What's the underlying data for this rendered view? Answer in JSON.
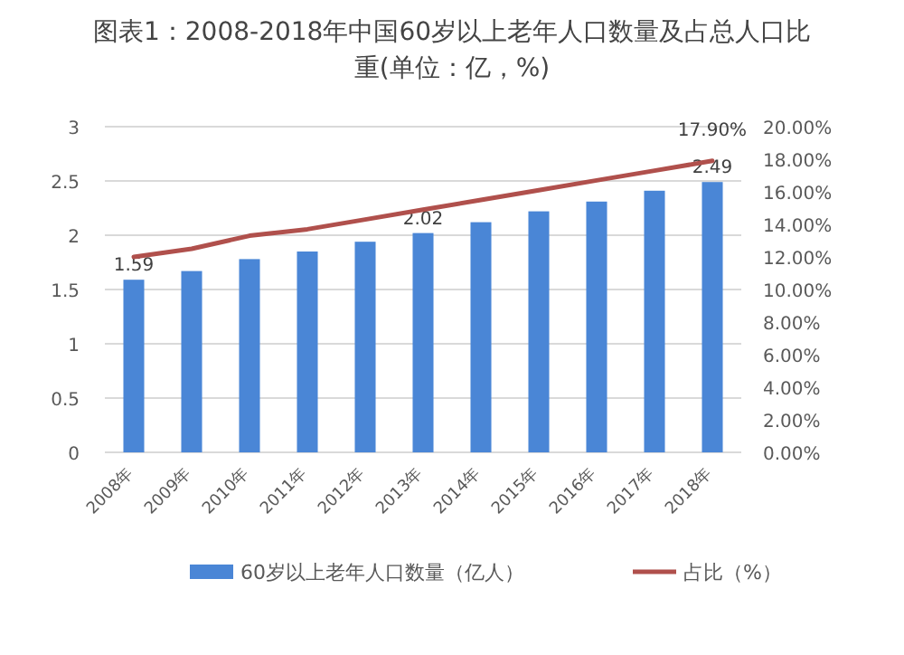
{
  "chart_data": {
    "type": "bar",
    "title": "图表1：2008-2018年中国60岁以上老年人口数量及占总人口比重(单位：亿，%)",
    "categories": [
      "2008年",
      "2009年",
      "2010年",
      "2011年",
      "2012年",
      "2013年",
      "2014年",
      "2015年",
      "2016年",
      "2017年",
      "2018年"
    ],
    "series": [
      {
        "name": "60岁以上老年人口数量（亿人）",
        "color": "#4a86d6",
        "values": [
          1.59,
          1.67,
          1.78,
          1.85,
          1.94,
          2.02,
          2.12,
          2.22,
          2.31,
          2.41,
          2.49
        ],
        "value_labels": [
          "1.59",
          null,
          null,
          null,
          null,
          "2.02",
          null,
          null,
          null,
          null,
          "2.49"
        ]
      },
      {
        "name": "占比（%）",
        "type": "line",
        "axis": "y2",
        "color": "#b0504c",
        "values": [
          12.0,
          12.5,
          13.3,
          13.7,
          14.3,
          14.9,
          15.5,
          16.1,
          16.7,
          17.3,
          17.9
        ],
        "value_labels": [
          null,
          null,
          null,
          null,
          null,
          null,
          null,
          null,
          null,
          null,
          "17.90%"
        ]
      }
    ],
    "ylim": [
      0,
      3
    ],
    "yticks": [
      0,
      0.5,
      1,
      1.5,
      2,
      2.5,
      3
    ],
    "y2lim": [
      0,
      20
    ],
    "y2ticks": [
      {
        "value": 0,
        "label": "0.00%"
      },
      {
        "value": 2,
        "label": "2.00%"
      },
      {
        "value": 4,
        "label": "4.00%"
      },
      {
        "value": 6,
        "label": "6.00%"
      },
      {
        "value": 8,
        "label": "8.00%"
      },
      {
        "value": 10,
        "label": "10.00%"
      },
      {
        "value": 12,
        "label": "12.00%"
      },
      {
        "value": 14,
        "label": "14.00%"
      },
      {
        "value": 16,
        "label": "16.00%"
      },
      {
        "value": 18,
        "label": "18.00%"
      },
      {
        "value": 20,
        "label": "20.00%"
      }
    ],
    "grid": "y",
    "legend": "bottom",
    "marker": "none"
  }
}
